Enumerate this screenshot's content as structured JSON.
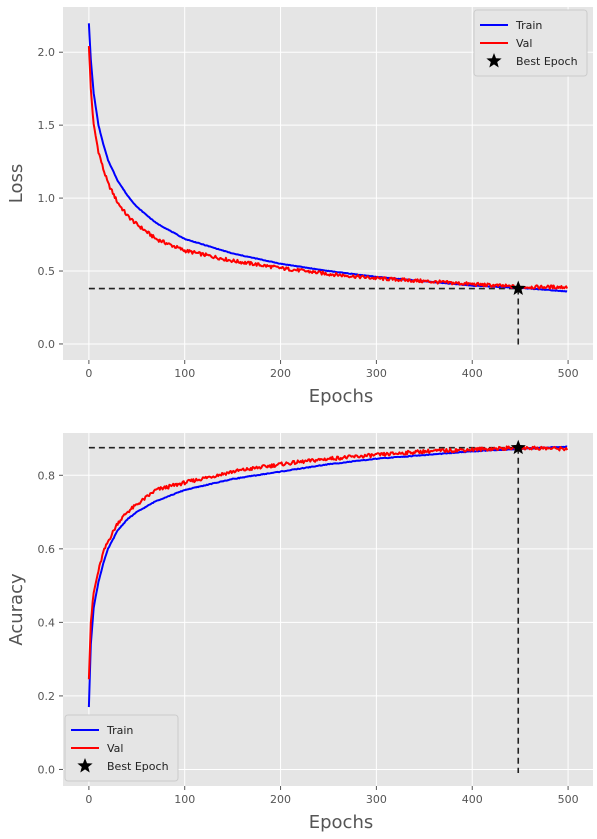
{
  "chart_data": [
    {
      "type": "line",
      "xlabel": "Epochs",
      "ylabel": "Loss",
      "xlim": [
        -27,
        526
      ],
      "ylim": [
        -0.11,
        2.31
      ],
      "xticks": [
        0,
        100,
        200,
        300,
        400,
        500
      ],
      "yticks": [
        0.0,
        0.5,
        1.0,
        1.5,
        2.0
      ],
      "xtick_labels": [
        "0",
        "100",
        "200",
        "300",
        "400",
        "500"
      ],
      "ytick_labels": [
        "0.0",
        "0.5",
        "1.0",
        "1.5",
        "2.0"
      ],
      "grid": true,
      "legend": {
        "placement": "top-right",
        "entries": [
          "Train",
          "Val",
          "Best Epoch"
        ]
      },
      "series": [
        {
          "name": "Train",
          "color": "#0000ff",
          "x": [
            0,
            2,
            5,
            10,
            15,
            20,
            30,
            40,
            50,
            70,
            100,
            150,
            200,
            250,
            300,
            350,
            400,
            450,
            500
          ],
          "y": [
            2.2,
            1.95,
            1.72,
            1.5,
            1.37,
            1.26,
            1.12,
            1.02,
            0.94,
            0.83,
            0.72,
            0.62,
            0.55,
            0.5,
            0.46,
            0.43,
            0.4,
            0.385,
            0.36
          ]
        },
        {
          "name": "Val",
          "color": "#ff0000",
          "x": [
            0,
            2,
            5,
            10,
            15,
            20,
            30,
            40,
            50,
            70,
            100,
            150,
            200,
            250,
            300,
            350,
            400,
            450,
            500
          ],
          "y": [
            2.05,
            1.75,
            1.5,
            1.32,
            1.2,
            1.1,
            0.97,
            0.88,
            0.82,
            0.72,
            0.64,
            0.57,
            0.52,
            0.48,
            0.45,
            0.43,
            0.41,
            0.39,
            0.39
          ]
        }
      ],
      "best_epoch": {
        "name": "Best Epoch",
        "x": 448,
        "y": 0.38
      }
    },
    {
      "type": "line",
      "xlabel": "Epochs",
      "ylabel": "Acuracy",
      "xlim": [
        -27,
        526
      ],
      "ylim": [
        -0.045,
        0.915
      ],
      "xticks": [
        0,
        100,
        200,
        300,
        400,
        500
      ],
      "yticks": [
        0.0,
        0.2,
        0.4,
        0.6,
        0.8
      ],
      "xtick_labels": [
        "0",
        "100",
        "200",
        "300",
        "400",
        "500"
      ],
      "ytick_labels": [
        "0.0",
        "0.2",
        "0.4",
        "0.6",
        "0.8"
      ],
      "grid": true,
      "legend": {
        "placement": "bottom-left",
        "entries": [
          "Train",
          "Val",
          "Best Epoch"
        ]
      },
      "series": [
        {
          "name": "Train",
          "color": "#0000ff",
          "x": [
            0,
            2,
            5,
            10,
            15,
            20,
            30,
            40,
            50,
            70,
            100,
            150,
            200,
            250,
            300,
            350,
            400,
            450,
            500
          ],
          "y": [
            0.17,
            0.34,
            0.44,
            0.51,
            0.56,
            0.6,
            0.65,
            0.68,
            0.7,
            0.73,
            0.76,
            0.79,
            0.81,
            0.83,
            0.845,
            0.855,
            0.865,
            0.872,
            0.878
          ]
        },
        {
          "name": "Val",
          "color": "#ff0000",
          "x": [
            0,
            2,
            5,
            10,
            15,
            20,
            30,
            40,
            50,
            70,
            100,
            150,
            200,
            250,
            300,
            350,
            400,
            450,
            500
          ],
          "y": [
            0.25,
            0.4,
            0.48,
            0.54,
            0.59,
            0.62,
            0.67,
            0.7,
            0.72,
            0.76,
            0.78,
            0.81,
            0.83,
            0.845,
            0.855,
            0.865,
            0.87,
            0.875,
            0.872
          ]
        }
      ],
      "best_epoch": {
        "name": "Best Epoch",
        "x": 448,
        "y": 0.875
      }
    }
  ]
}
